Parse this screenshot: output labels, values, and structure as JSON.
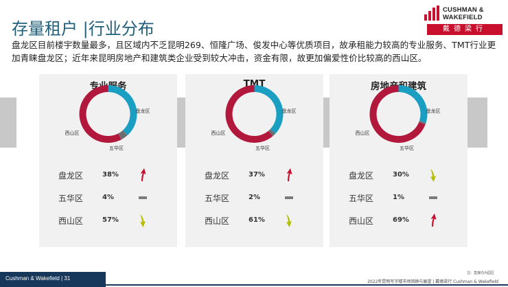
{
  "header": {
    "title": "存量租户 |行业分布"
  },
  "logo": {
    "line1": "CUSHMAN &",
    "line2": "WAKEFIELD",
    "chinese": "戴德梁行"
  },
  "description": "盘龙区目前楼宇数量最多，且区域内不乏昆明269、恒隆广场、俊发中心等优质项目，故承租能力较高的专业服务、TMT行业更加青睐盘龙区；近年来昆明房地产和建筑类企业受到较大冲击，资金有限，故更加偏爱性价比较高的西山区。",
  "colors": {
    "panlong": "#1a9ec1",
    "wuhua": "#6d6d6d",
    "xishan": "#b2183c",
    "arrow_up": "#c8102e",
    "arrow_down": "#b5bd00",
    "flat": "#7a7a7a"
  },
  "chart_data": [
    {
      "type": "pie",
      "title": "专业服务",
      "categories": [
        "盘龙区",
        "五华区",
        "西山区"
      ],
      "values": [
        38,
        4,
        57
      ],
      "value_labels": [
        "38%",
        "4%",
        "57%"
      ],
      "trend": [
        "up-arrow-icon",
        "flat-dash-icon",
        "down-arrow-icon"
      ]
    },
    {
      "type": "pie",
      "title": "TMT",
      "categories": [
        "盘龙区",
        "五华区",
        "西山区"
      ],
      "values": [
        37,
        2,
        61
      ],
      "value_labels": [
        "37%",
        "2%",
        "61%"
      ],
      "trend": [
        "up-arrow-icon",
        "flat-dash-icon",
        "down-arrow-icon"
      ]
    },
    {
      "type": "pie",
      "title": "房地产和建筑",
      "categories": [
        "盘龙区",
        "五华区",
        "西山区"
      ],
      "values": [
        30,
        1,
        69
      ],
      "value_labels": [
        "30%",
        "1%",
        "69%"
      ],
      "trend": [
        "down-arrow-icon",
        "flat-dash-icon",
        "up-arrow-icon"
      ]
    }
  ],
  "footer": {
    "left": "Cushman & Wakefield  |  31",
    "note": "注：直接均为园区",
    "right": "2022年昆明写字楼市场回顾与展望  |  戴德梁行 Cushman & Wakefield"
  }
}
